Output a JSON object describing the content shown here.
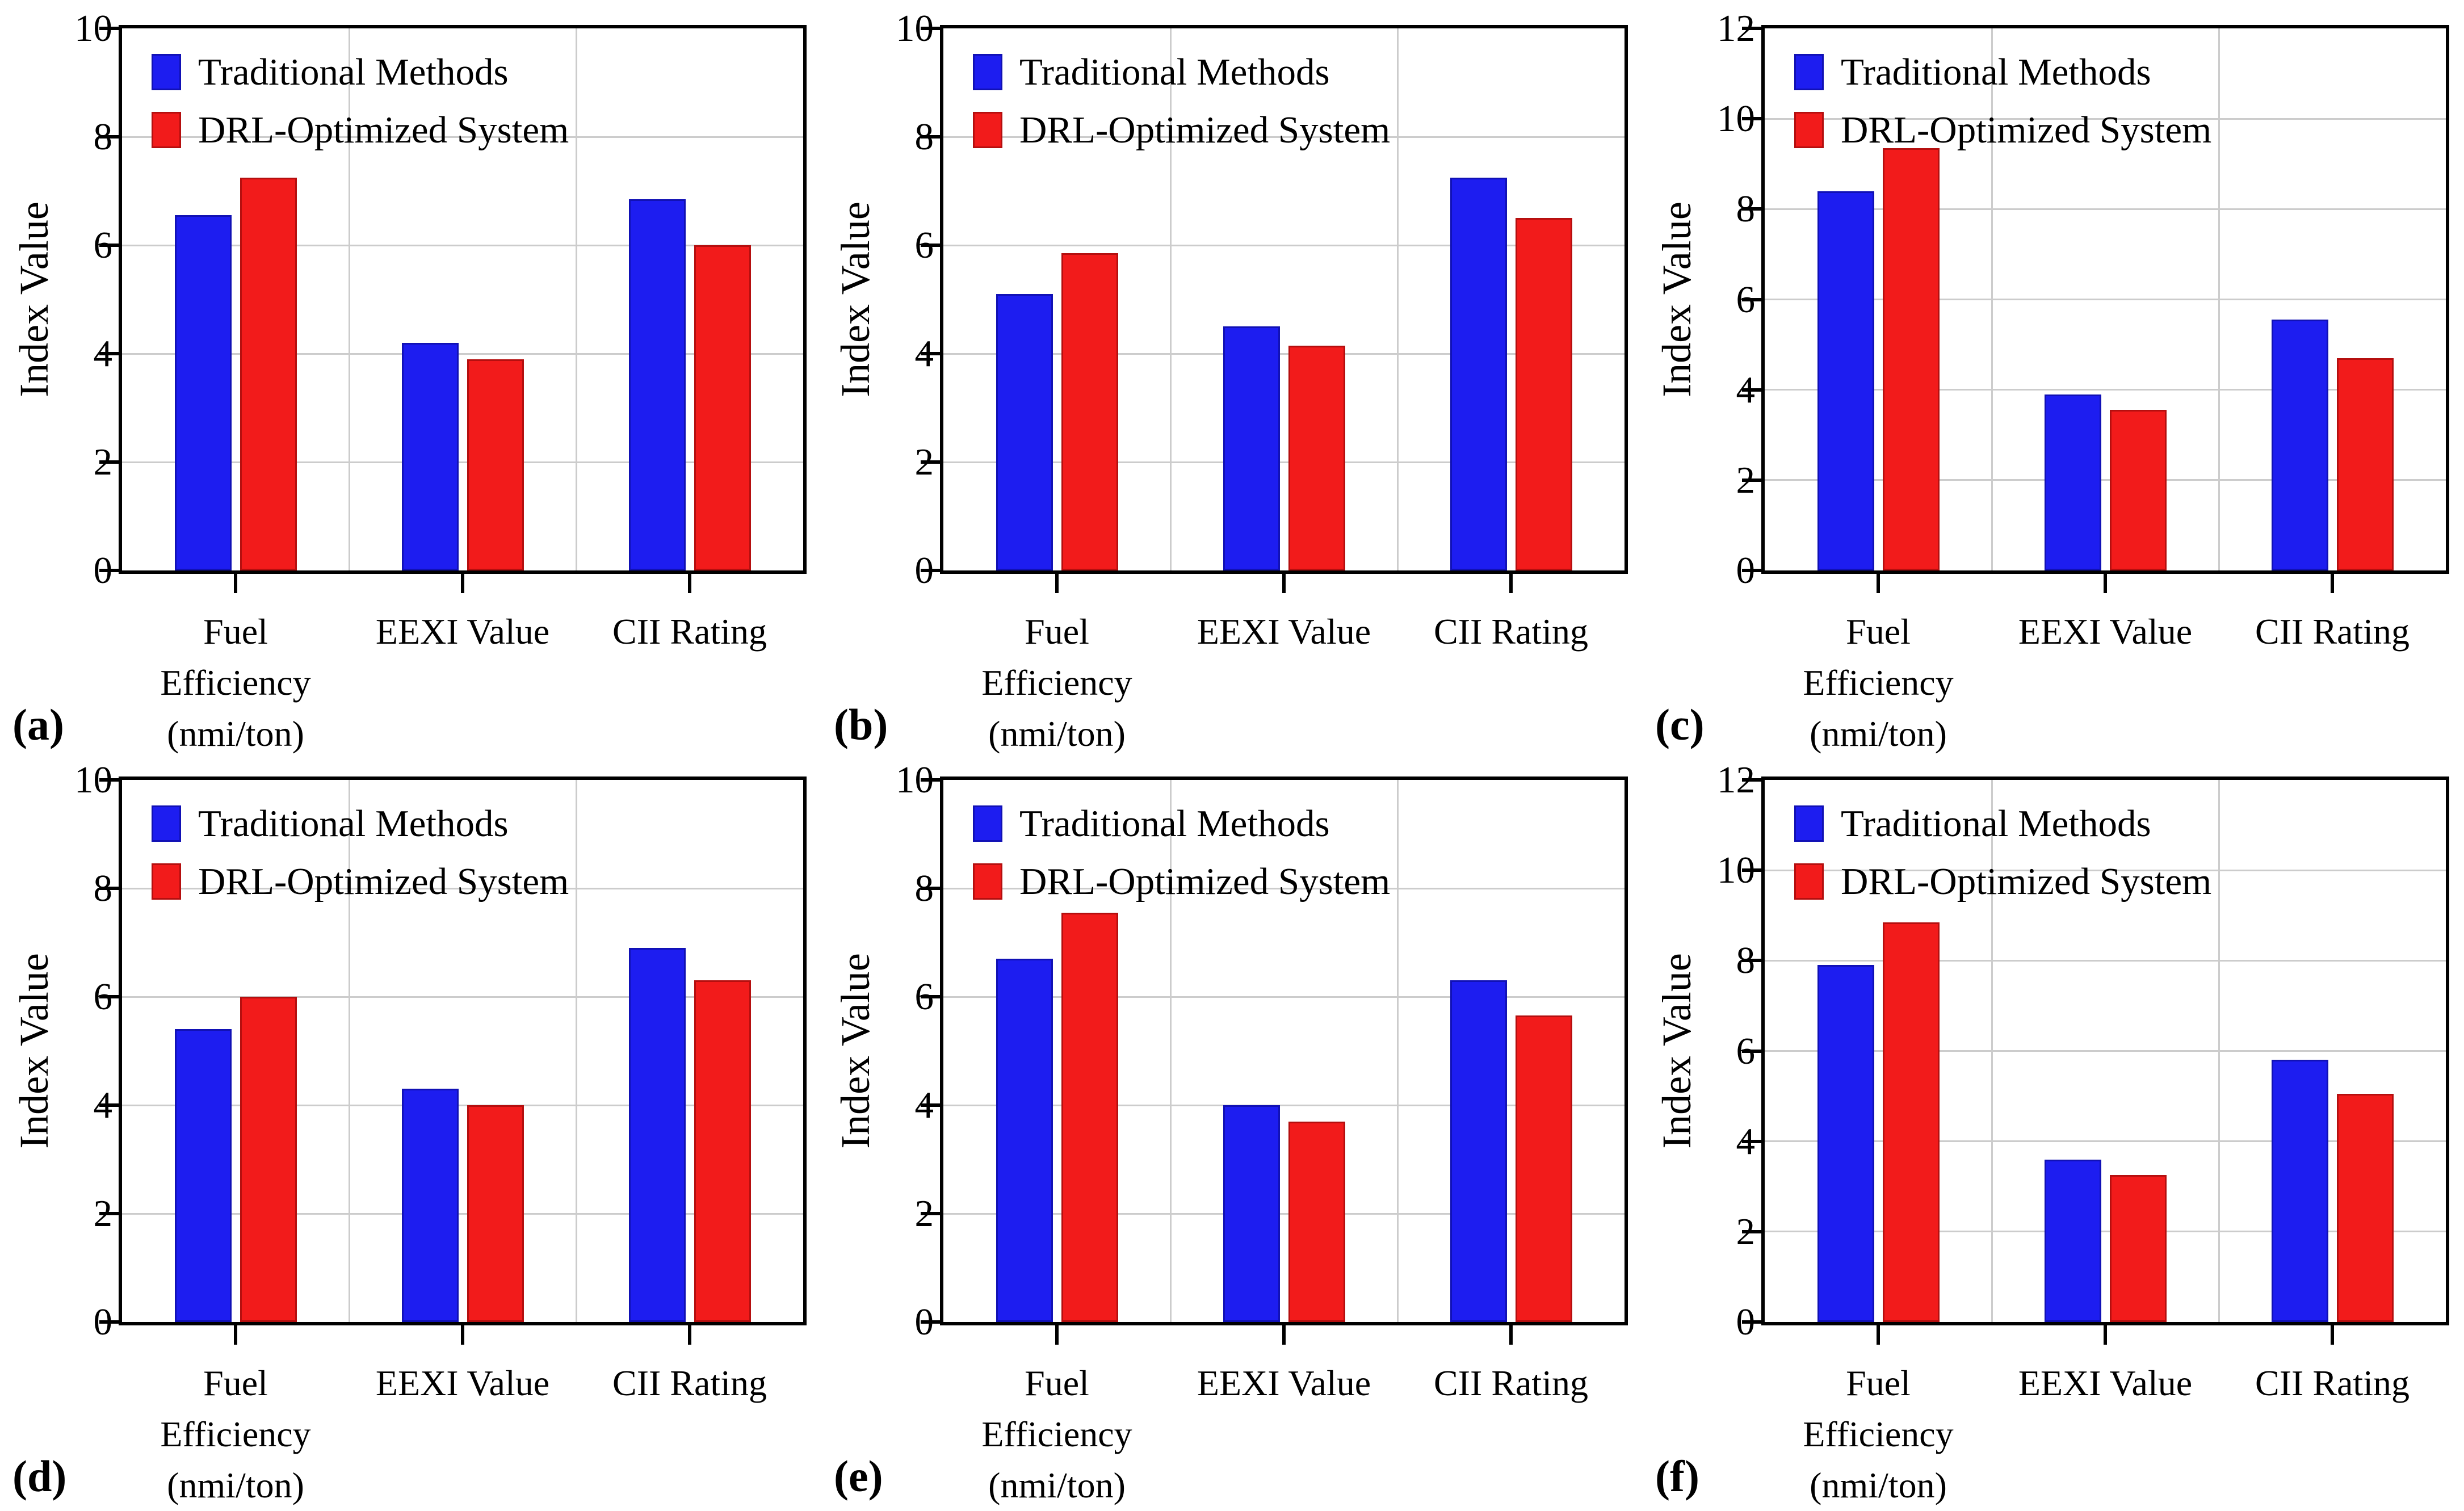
{
  "figure": {
    "y_axis_label": "Index Value",
    "legend": [
      "Traditional Methods",
      "DRL-Optimized System"
    ],
    "colors": {
      "traditional_fill": "#1d1df0",
      "traditional_border": "#1111b5",
      "drl_fill": "#f21b1b",
      "drl_border": "#b50f0f",
      "gridline": "#cccccc",
      "axis": "#000000"
    }
  },
  "chart_data": [
    {
      "id": "a",
      "type": "bar",
      "panel_label": "(a)",
      "ylabel": "Index Value",
      "ylim": [
        0,
        10
      ],
      "yticks": [
        0,
        2,
        4,
        6,
        8,
        10
      ],
      "yticklabels": [
        "0",
        "2",
        "4",
        "6",
        "8",
        "10"
      ],
      "grid": true,
      "legend_position": "top-left",
      "categories": [
        "Fuel Efficiency (nmi/ton)",
        "EEXI Value",
        "CII Rating"
      ],
      "categories_display": [
        "Fuel\nEfficiency\n(nmi/ton)",
        "EEXI Value",
        "CII Rating"
      ],
      "series": [
        {
          "name": "Traditional Methods",
          "values": [
            6.55,
            4.2,
            6.85
          ]
        },
        {
          "name": "DRL-Optimized System",
          "values": [
            7.25,
            3.9,
            6.0
          ]
        }
      ]
    },
    {
      "id": "b",
      "type": "bar",
      "panel_label": "(b)",
      "ylabel": "Index Value",
      "ylim": [
        0,
        10
      ],
      "yticks": [
        0,
        2,
        4,
        6,
        8,
        10
      ],
      "yticklabels": [
        "0",
        "2",
        "4",
        "6",
        "8",
        "10"
      ],
      "grid": true,
      "legend_position": "top-left",
      "categories": [
        "Fuel Efficiency (nmi/ton)",
        "EEXI Value",
        "CII Rating"
      ],
      "categories_display": [
        "Fuel\nEfficiency\n(nmi/ton)",
        "EEXI Value",
        "CII Rating"
      ],
      "series": [
        {
          "name": "Traditional Methods",
          "values": [
            5.1,
            4.5,
            7.25
          ]
        },
        {
          "name": "DRL-Optimized System",
          "values": [
            5.85,
            4.15,
            6.5
          ]
        }
      ]
    },
    {
      "id": "c",
      "type": "bar",
      "panel_label": "(c)",
      "ylabel": "Index Value",
      "ylim": [
        0,
        12
      ],
      "yticks": [
        0,
        2,
        4,
        6,
        8,
        10,
        12
      ],
      "yticklabels": [
        "0",
        "2",
        "4",
        "6",
        "8",
        "10",
        "12"
      ],
      "grid": true,
      "legend_position": "top-left",
      "categories": [
        "Fuel Efficiency (nmi/ton)",
        "EEXI Value",
        "CII Rating"
      ],
      "categories_display": [
        "Fuel\nEfficiency\n(nmi/ton)",
        "EEXI Value",
        "CII Rating"
      ],
      "series": [
        {
          "name": "Traditional Methods",
          "values": [
            8.4,
            3.9,
            5.55
          ]
        },
        {
          "name": "DRL-Optimized System",
          "values": [
            9.35,
            3.55,
            4.7
          ]
        }
      ]
    },
    {
      "id": "d",
      "type": "bar",
      "panel_label": "(d)",
      "ylabel": "Index Value",
      "ylim": [
        0,
        10
      ],
      "yticks": [
        0,
        2,
        4,
        6,
        8,
        10
      ],
      "yticklabels": [
        "0",
        "2",
        "4",
        "6",
        "8",
        "10"
      ],
      "grid": true,
      "legend_position": "top-left",
      "categories": [
        "Fuel Efficiency (nmi/ton)",
        "EEXI Value",
        "CII Rating"
      ],
      "categories_display": [
        "Fuel\nEfficiency\n(nmi/ton)",
        "EEXI Value",
        "CII Rating"
      ],
      "series": [
        {
          "name": "Traditional Methods",
          "values": [
            5.4,
            4.3,
            6.9
          ]
        },
        {
          "name": "DRL-Optimized System",
          "values": [
            6.0,
            4.0,
            6.3
          ]
        }
      ]
    },
    {
      "id": "e",
      "type": "bar",
      "panel_label": "(e)",
      "ylabel": "Index Value",
      "ylim": [
        0,
        10
      ],
      "yticks": [
        0,
        2,
        4,
        6,
        8,
        10
      ],
      "yticklabels": [
        "0",
        "2",
        "4",
        "6",
        "8",
        "10"
      ],
      "grid": true,
      "legend_position": "top-left",
      "categories": [
        "Fuel Efficiency (nmi/ton)",
        "EEXI Value",
        "CII Rating"
      ],
      "categories_display": [
        "Fuel\nEfficiency\n(nmi/ton)",
        "EEXI Value",
        "CII Rating"
      ],
      "series": [
        {
          "name": "Traditional Methods",
          "values": [
            6.7,
            4.0,
            6.3
          ]
        },
        {
          "name": "DRL-Optimized System",
          "values": [
            7.55,
            3.7,
            5.65
          ]
        }
      ]
    },
    {
      "id": "f",
      "type": "bar",
      "panel_label": "(f)",
      "ylabel": "Index Value",
      "ylim": [
        0,
        12
      ],
      "yticks": [
        0,
        2,
        4,
        6,
        8,
        10,
        12
      ],
      "yticklabels": [
        "0",
        "2",
        "4",
        "6",
        "8",
        "10",
        "12"
      ],
      "grid": true,
      "legend_position": "top-left",
      "categories": [
        "Fuel Efficiency (nmi/ton)",
        "EEXI Value",
        "CII Rating"
      ],
      "categories_display": [
        "Fuel\nEfficiency\n(nmi/ton)",
        "EEXI Value",
        "CII Rating"
      ],
      "series": [
        {
          "name": "Traditional Methods",
          "values": [
            7.9,
            3.6,
            5.8
          ]
        },
        {
          "name": "DRL-Optimized System",
          "values": [
            8.85,
            3.25,
            5.05
          ]
        }
      ]
    }
  ]
}
